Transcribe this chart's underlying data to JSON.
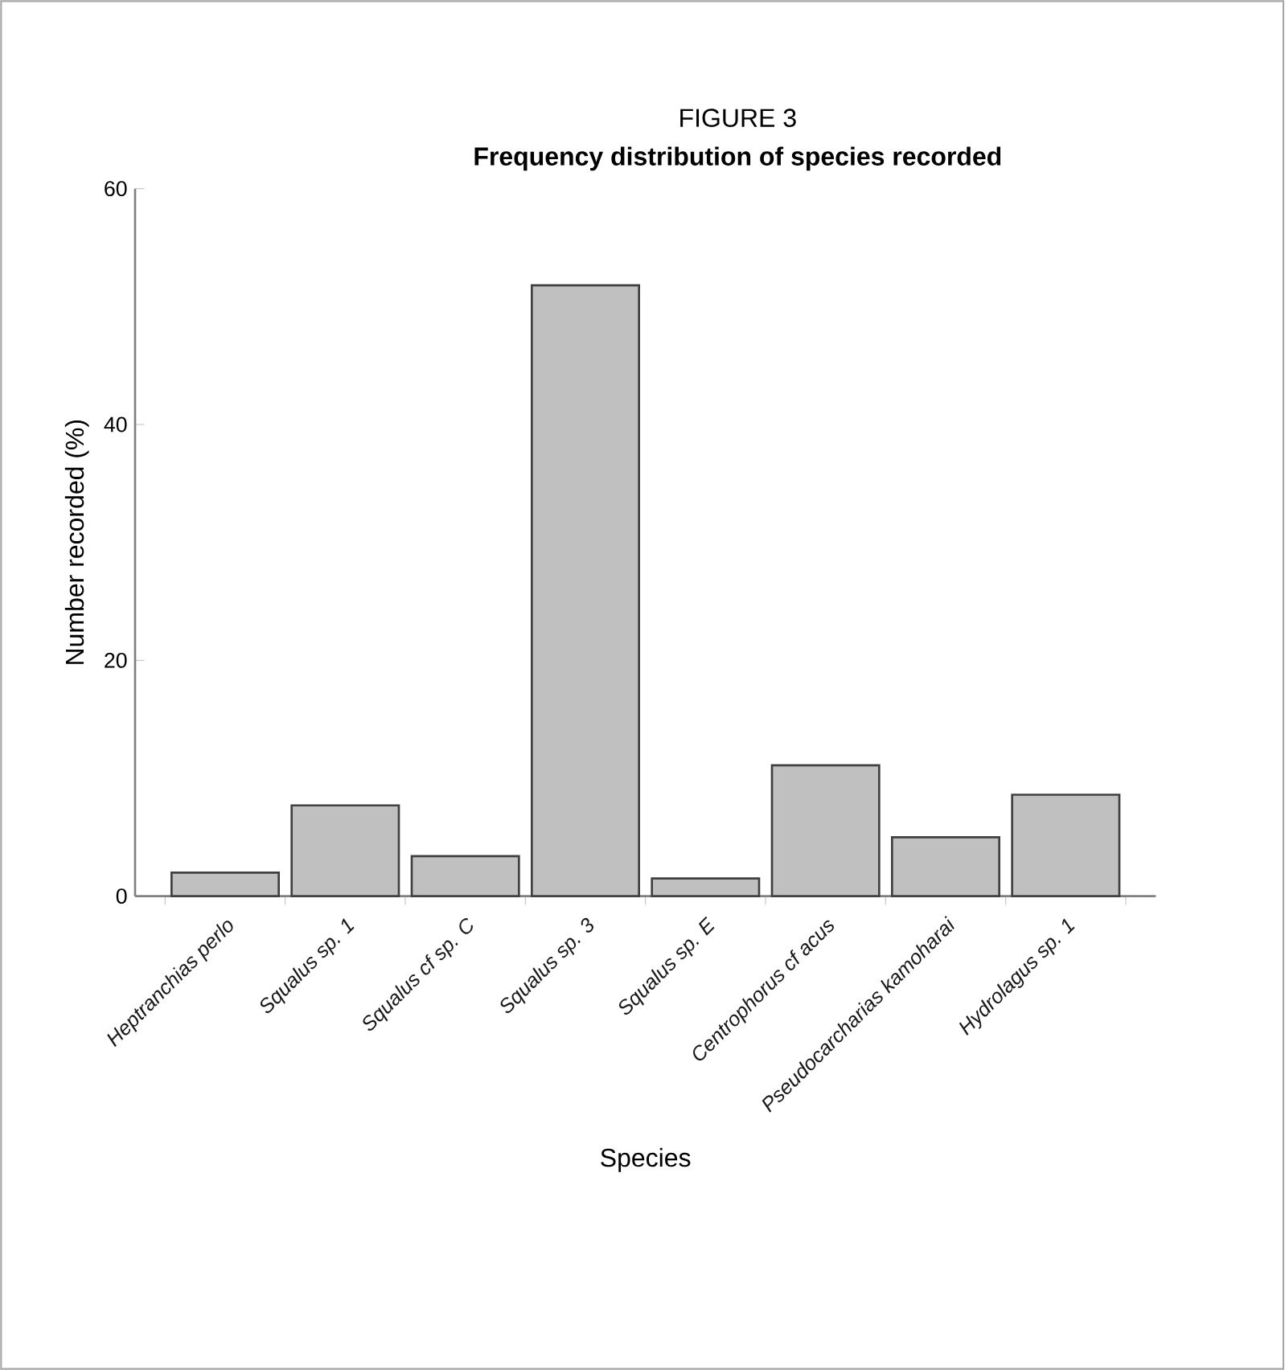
{
  "chart_data": {
    "type": "bar",
    "title": "FIGURE 3",
    "subtitle": "Frequency distribution of species recorded",
    "xlabel": "Species",
    "ylabel": "Number recorded (%)",
    "categories": [
      "Heptranchias perlo",
      "Squalus sp. 1",
      "Squalus cf sp. C",
      "Squalus sp. 3",
      "Squalus sp. E",
      "Centrophorus cf acus",
      "Pseudocarcharias kamoharai",
      "Hydrolagus sp. 1"
    ],
    "values": [
      2.0,
      7.7,
      3.4,
      51.8,
      1.5,
      11.1,
      5.0,
      8.6
    ],
    "color": "#c0c0c0",
    "ylim": [
      0,
      60
    ],
    "yticks": [
      0,
      20,
      40,
      60
    ]
  }
}
